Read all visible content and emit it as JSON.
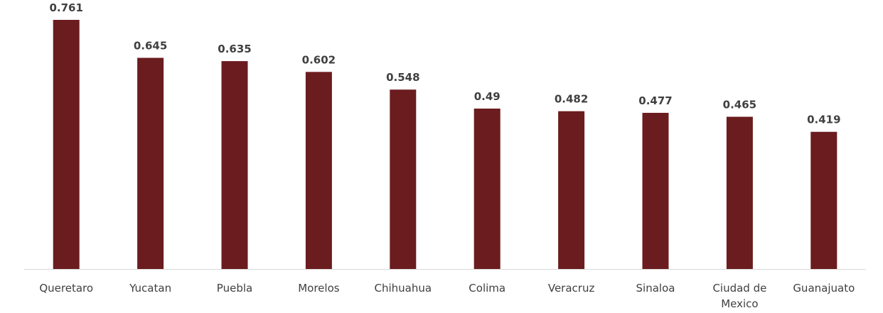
{
  "chart_data": {
    "type": "bar",
    "categories": [
      "Queretaro",
      "Yucatan",
      "Puebla",
      "Morelos",
      "Chihuahua",
      "Colima",
      "Veracruz",
      "Sinaloa",
      "Ciudad de Mexico",
      "Guanajuato"
    ],
    "category_lines": [
      [
        "Queretaro"
      ],
      [
        "Yucatan"
      ],
      [
        "Puebla"
      ],
      [
        "Morelos"
      ],
      [
        "Chihuahua"
      ],
      [
        "Colima"
      ],
      [
        "Veracruz"
      ],
      [
        "Sinaloa"
      ],
      [
        "Ciudad de",
        "Mexico"
      ],
      [
        "Guanajuato"
      ]
    ],
    "values": [
      0.761,
      0.645,
      0.635,
      0.602,
      0.548,
      0.49,
      0.482,
      0.477,
      0.465,
      0.419
    ],
    "data_labels": [
      "0.761",
      "0.645",
      "0.635",
      "0.602",
      "0.548",
      "0.49",
      "0.482",
      "0.477",
      "0.465",
      "0.419"
    ],
    "title": "",
    "xlabel": "",
    "ylabel": "",
    "ylim": [
      0,
      0.8
    ],
    "grid": false,
    "legend": "none",
    "bar_color": "#6b1c1f",
    "axis_color": "#d9d9d9",
    "label_color": "#404040"
  }
}
